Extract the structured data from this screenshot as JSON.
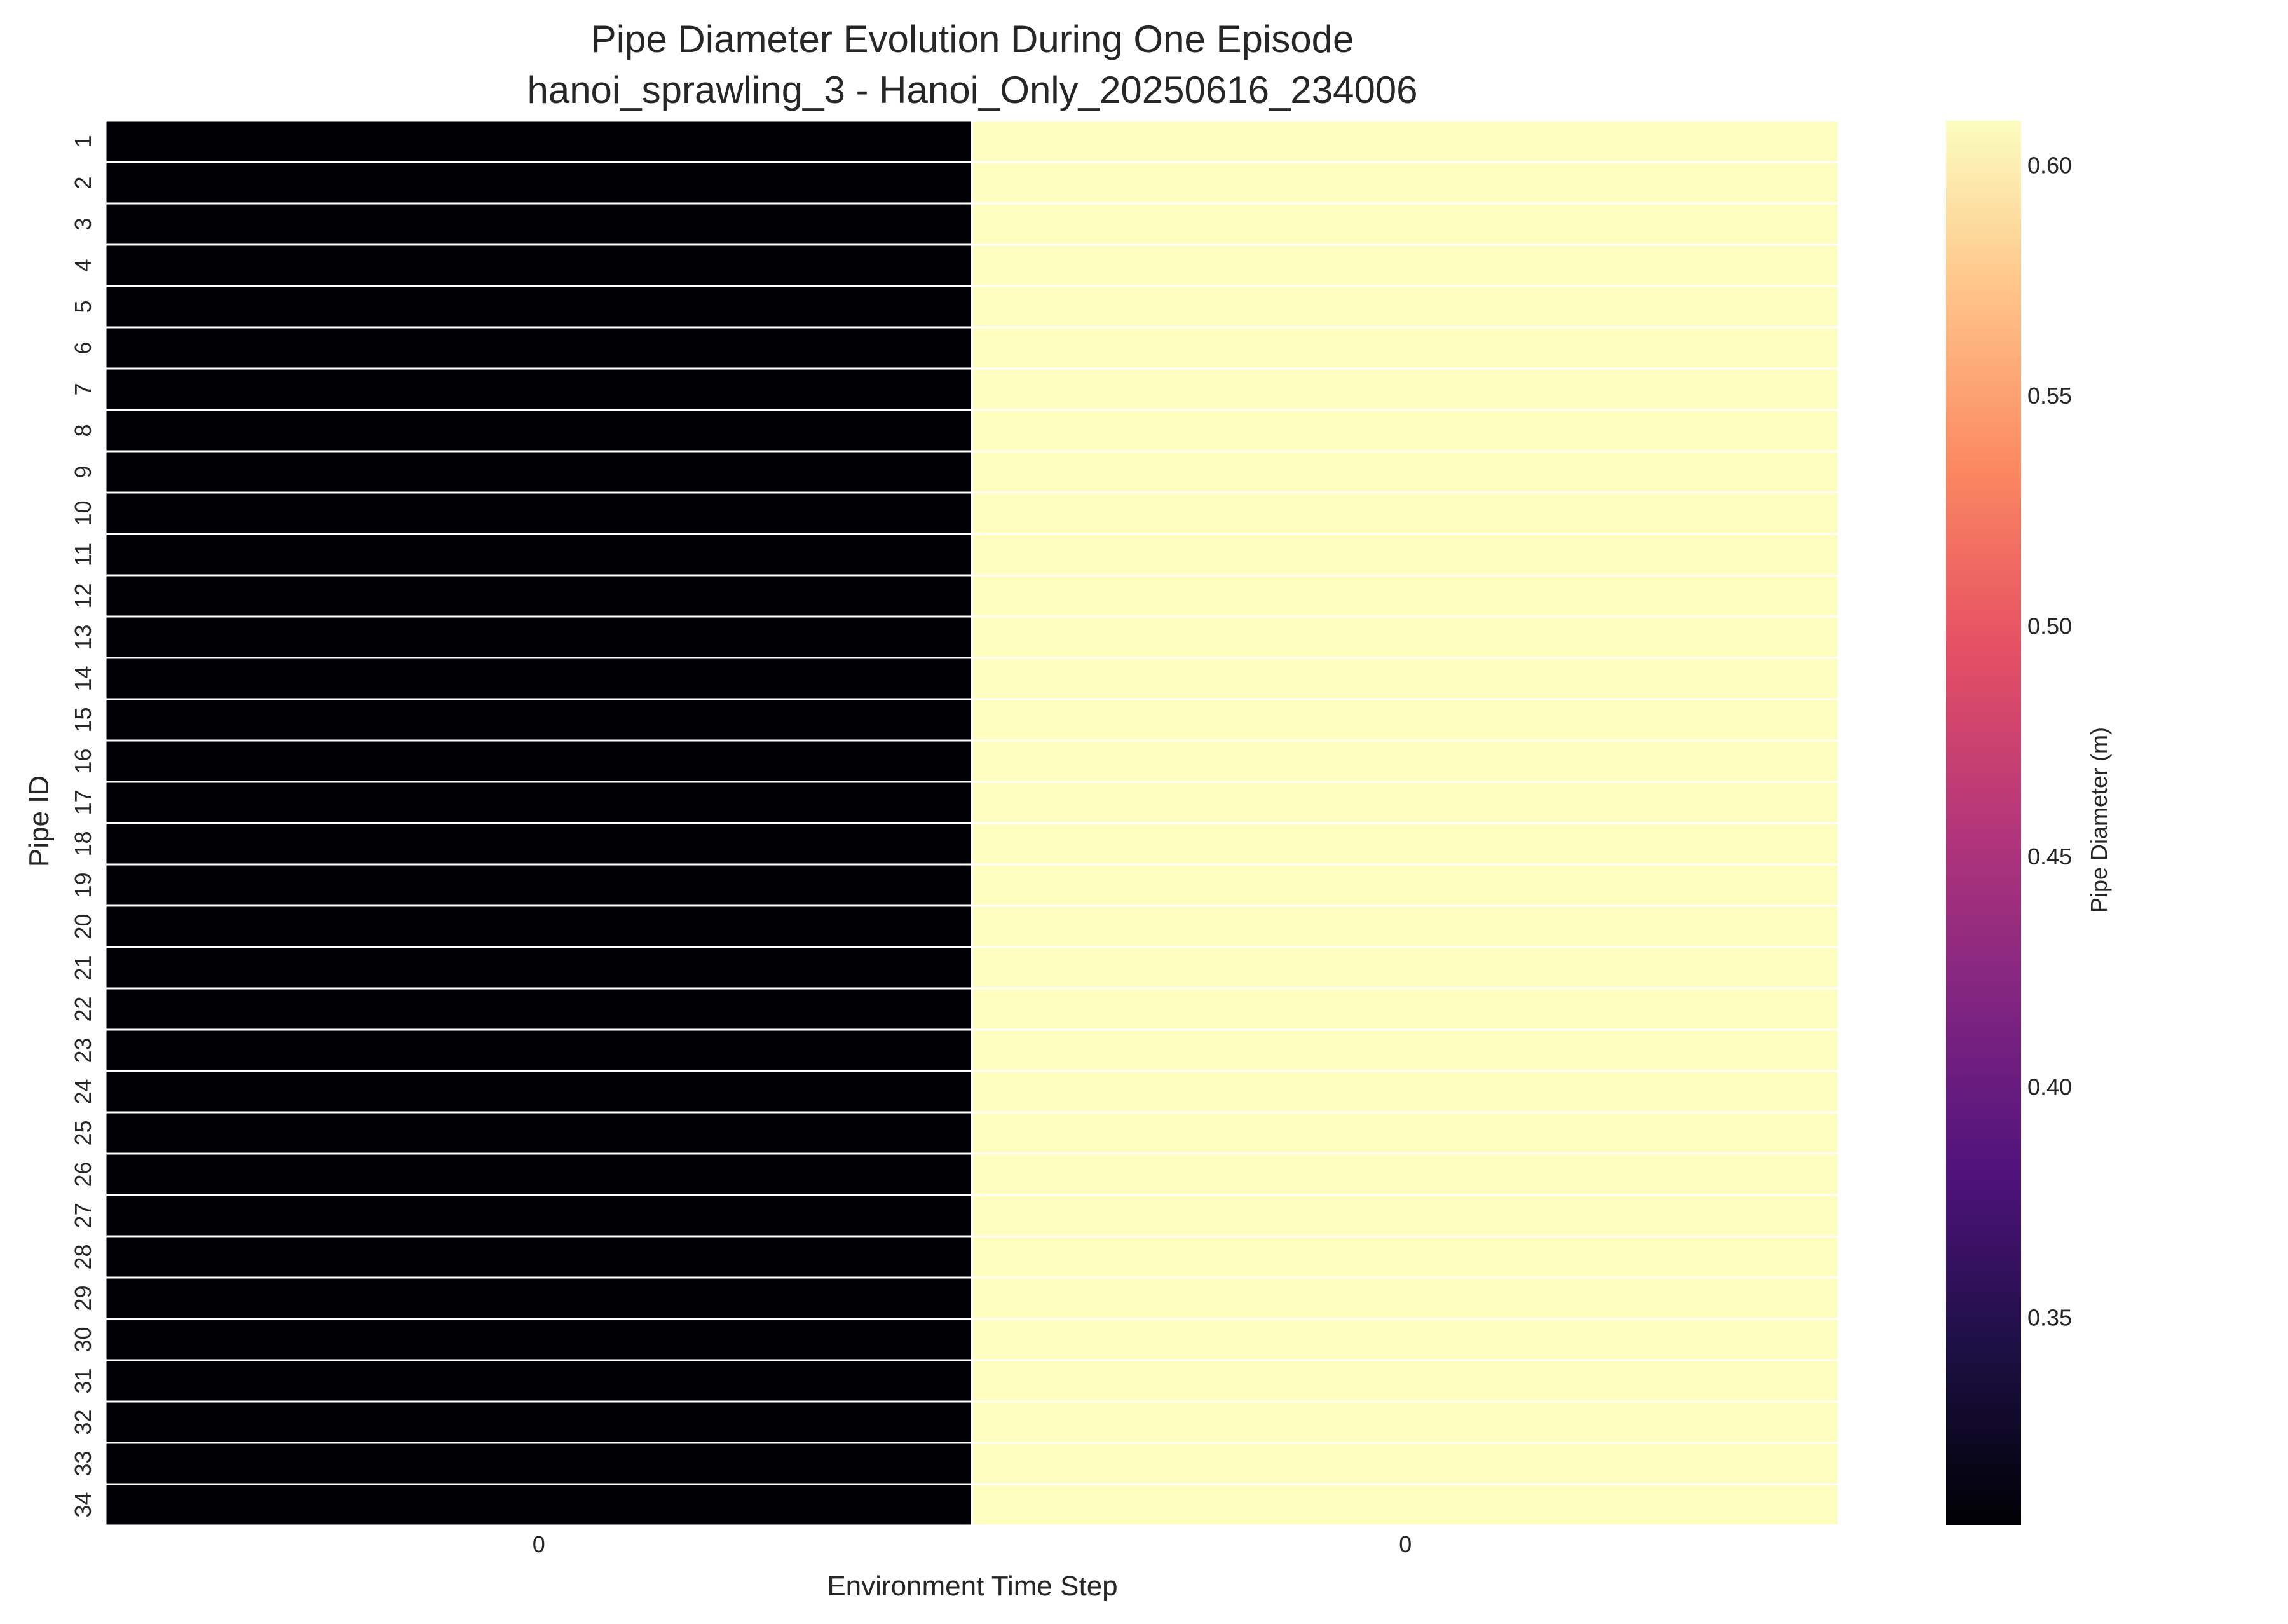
{
  "chart_data": {
    "type": "heatmap",
    "title": "Pipe Diameter Evolution During One Episode",
    "subtitle": "hanoi_sprawling_3 - Hanoi_Only_20250616_234006",
    "xlabel": "Environment Time Step",
    "ylabel": "Pipe ID",
    "x_ticks": [
      "0",
      "0"
    ],
    "y_ticks": [
      "1",
      "2",
      "3",
      "4",
      "5",
      "6",
      "7",
      "8",
      "9",
      "10",
      "11",
      "12",
      "13",
      "14",
      "15",
      "16",
      "17",
      "18",
      "19",
      "20",
      "21",
      "22",
      "23",
      "24",
      "25",
      "26",
      "27",
      "28",
      "29",
      "30",
      "31",
      "32",
      "33",
      "34"
    ],
    "values_by_column": [
      0.3048,
      0.6096
    ],
    "colormap": "magma",
    "colorbar": {
      "label": "Pipe Diameter (m)",
      "range": [
        0.3048,
        0.6096
      ],
      "ticks": [
        "0.35",
        "0.40",
        "0.45",
        "0.50",
        "0.55",
        "0.60"
      ]
    },
    "grid": false,
    "colors": {
      "low": "#000004",
      "high": "#fcfdbf",
      "cell_border": "#ffffff",
      "text": "#262626"
    }
  }
}
